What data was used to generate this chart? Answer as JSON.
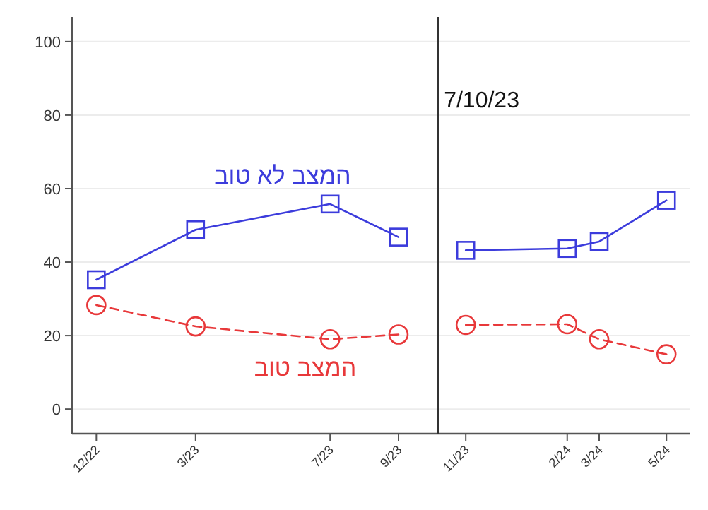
{
  "chart_data": {
    "type": "line",
    "x": [
      "2022-12",
      "2023-03",
      "2023-07",
      "2023-09",
      "2023-11",
      "2024-02",
      "2024-03",
      "2024-05"
    ],
    "series": [
      {
        "name": "המצב לא טוב",
        "color": "#3c3cdc",
        "marker": "square",
        "line_style": "solid",
        "values": [
          35.2,
          48.8,
          55.8,
          46.8,
          43.2,
          43.7,
          45.6,
          56.8
        ]
      },
      {
        "name": "המצב טוב",
        "color": "#e8383a",
        "marker": "circle",
        "line_style": "dashed",
        "values": [
          28.3,
          22.5,
          19.0,
          20.3,
          22.9,
          23.1,
          19.0,
          14.9
        ]
      }
    ],
    "xlim": [
      "2022-11-09",
      "2024-05-22"
    ],
    "xticks": [
      {
        "value": "2022-12",
        "label": "12/22"
      },
      {
        "value": "2023-03",
        "label": "3/23"
      },
      {
        "value": "2023-07",
        "label": "7/23"
      },
      {
        "value": "2023-09",
        "label": "9/23"
      },
      {
        "value": "2023-11",
        "label": "11/23"
      },
      {
        "value": "2024-02",
        "label": "2/24"
      },
      {
        "value": "2024-03",
        "label": "3/24"
      },
      {
        "value": "2024-05",
        "label": "5/24"
      }
    ],
    "ylim": [
      -6.7,
      106.7
    ],
    "yticks": [
      0,
      20,
      40,
      60,
      80,
      100
    ],
    "grid": "y",
    "legend": false,
    "ref_lines": [
      {
        "axis": "x",
        "value": "2023-10-07",
        "label": "7/10/23",
        "color": "#333333"
      }
    ]
  }
}
